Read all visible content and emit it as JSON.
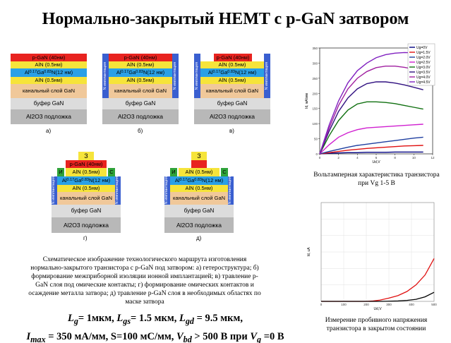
{
  "title": "Нормально-закрытый HEMT с p-GaN затвором",
  "layers": {
    "pgan": "p-GaN (40нм)",
    "aln": "AlN (0.5нм)",
    "algan": "Al0.17Ga0.83N(12 нм)",
    "algan_parts": {
      "a": "Al",
      "a_sub": "0.17",
      "b": "Ga",
      "b_sub": "0.83",
      "c": "N(12 нм)"
    },
    "channel": "канальный слой GaN",
    "buffer": "буфер GaN",
    "substrate": "Al2O3 подложка"
  },
  "isolation_label": "N имплантация",
  "contacts": {
    "source_left": "И",
    "drain_right": "С",
    "gate": "З"
  },
  "subfigure_labels": [
    "а)",
    "б)",
    "в)",
    "г)",
    "д)"
  ],
  "caption_left": "Схематическое изображение технологического маршрута изготовления нормально-закрытого транзистора с p-GaN под затвором: а) гетероструктура; б) формирование межприборной изоляции ионной имплантацией; в) травление p-GaN слоя под омические контакты; г) формирование омических контактов и осаждение металла затвора; д) травление p-GaN слоя в необходимых областях по маске затвора",
  "params": {
    "line1": "Lg= 1мкм, Lgs= 1.5 мкм, Lgd = 9.5 мкм,",
    "line2": "Imax = 350 мА/мм, S=100 мС/мм, Vbd > 500 В при Vg =0 В"
  },
  "iv_caption": {
    "line1": "Вольтамперная характеристика транзистора",
    "line2": "при Vg 1-5 В"
  },
  "bd_caption": {
    "line1": "Измерение пробивного напряжения",
    "line2": "транзистора в закрытом состоянии"
  },
  "chart_data": [
    {
      "type": "line",
      "title": "",
      "xlabel": "Ud,V",
      "ylabel": "Id, мА/мм",
      "xlim": [
        0,
        12
      ],
      "ylim": [
        0,
        350
      ],
      "legend_position": "top-right",
      "x": [
        0,
        1,
        2,
        3,
        4,
        5,
        6,
        7,
        8,
        9,
        10,
        11
      ],
      "series": [
        {
          "name": "Ug=0V",
          "color": "#000080",
          "values": [
            0,
            2,
            3,
            4,
            4,
            5,
            5,
            5,
            6,
            6,
            6,
            6
          ]
        },
        {
          "name": "Ug=1.5V",
          "color": "#e01010",
          "values": [
            0,
            4,
            8,
            12,
            15,
            18,
            20,
            22,
            24,
            26,
            27,
            28
          ]
        },
        {
          "name": "Ug=2.0V",
          "color": "#1f3fa0",
          "values": [
            0,
            8,
            15,
            22,
            28,
            32,
            36,
            40,
            44,
            48,
            52,
            55
          ]
        },
        {
          "name": "Ug=2.5V",
          "color": "#d020d0",
          "values": [
            0,
            30,
            55,
            70,
            80,
            86,
            88,
            90,
            92,
            94,
            96,
            98
          ]
        },
        {
          "name": "Ug=3.0V",
          "color": "#107010",
          "values": [
            0,
            60,
            110,
            145,
            165,
            172,
            172,
            170,
            166,
            160,
            154,
            148
          ]
        },
        {
          "name": "Ug=3.5V",
          "color": "#301080",
          "values": [
            0,
            75,
            140,
            185,
            215,
            232,
            238,
            238,
            234,
            228,
            220,
            212
          ]
        },
        {
          "name": "Ug=4.0V",
          "color": "#a020a0",
          "values": [
            0,
            85,
            160,
            215,
            250,
            272,
            285,
            290,
            290,
            286,
            280,
            272
          ]
        },
        {
          "name": "Ug=4.5V",
          "color": "#8020c0",
          "values": [
            0,
            95,
            175,
            235,
            275,
            300,
            318,
            328,
            333,
            335,
            334,
            330
          ]
        }
      ]
    },
    {
      "type": "line",
      "title": "",
      "xlabel": "Ud,V",
      "ylabel": "Id, uA",
      "xlim": [
        0,
        500
      ],
      "ylim": [
        0,
        1200
      ],
      "xticks": [
        0,
        100,
        200,
        300,
        400,
        500
      ],
      "x": [
        0,
        100,
        200,
        230,
        260,
        300,
        340,
        380,
        420,
        460,
        500
      ],
      "series": [
        {
          "color": "#e01010",
          "values": [
            0,
            0,
            0,
            5,
            15,
            40,
            70,
            120,
            200,
            320,
            520
          ]
        },
        {
          "color": "#000000",
          "values": [
            0,
            0,
            0,
            0,
            0,
            2,
            5,
            12,
            25,
            55,
            110
          ]
        }
      ]
    }
  ]
}
